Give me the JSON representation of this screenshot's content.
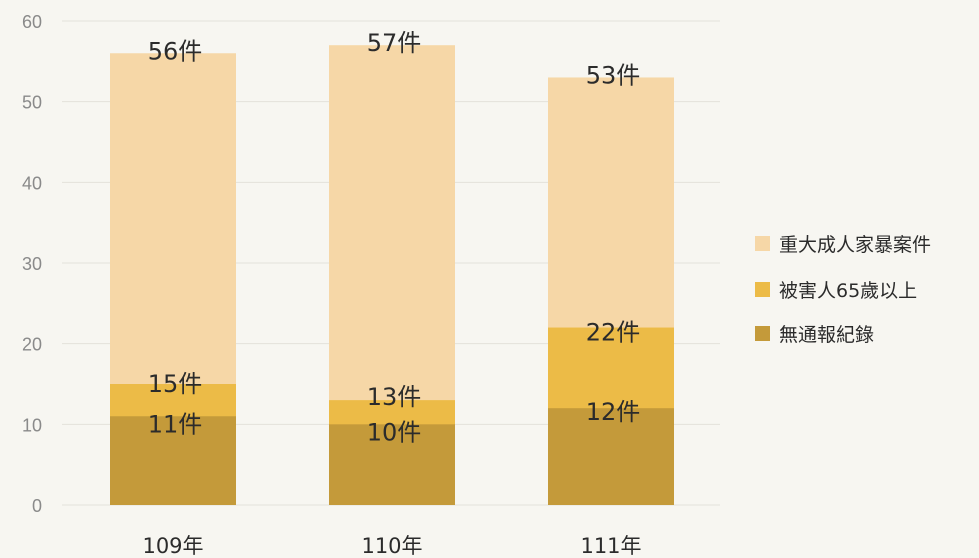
{
  "chart_data": {
    "type": "bar",
    "stacking": "overlay",
    "categories": [
      "109年",
      "110年",
      "111年"
    ],
    "series": [
      {
        "name": "重大成人家暴案件",
        "values": [
          56,
          57,
          53
        ],
        "labels": [
          "56件",
          "57件",
          "53件"
        ],
        "color": "#f6d7a7"
      },
      {
        "name": "被害人65歲以上",
        "values": [
          15,
          13,
          22
        ],
        "labels": [
          "15件",
          "13件",
          "22件"
        ],
        "color": "#ecbb47"
      },
      {
        "name": "無通報紀錄",
        "values": [
          11,
          10,
          12
        ],
        "labels": [
          "11件",
          "10件",
          "12件"
        ],
        "color": "#c49a3a"
      }
    ],
    "yticks": [
      "0",
      "10",
      "20",
      "30",
      "40",
      "50",
      "60"
    ],
    "ylim": [
      0,
      60
    ],
    "grid": true,
    "legend_position": "right"
  }
}
